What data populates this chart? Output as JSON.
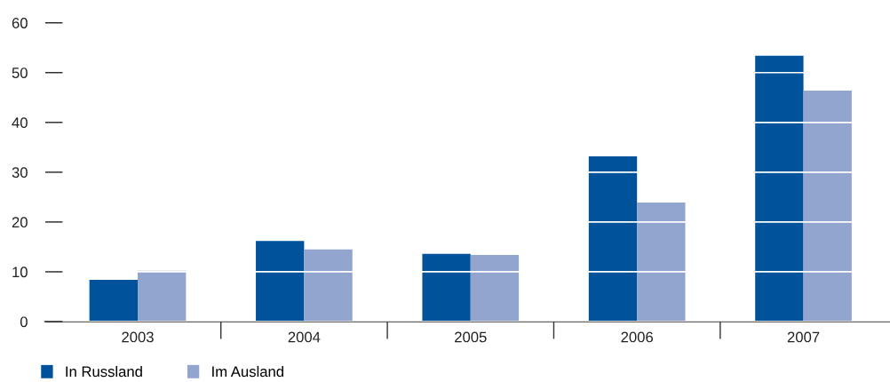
{
  "chart_data": {
    "type": "bar",
    "categories": [
      "2003",
      "2004",
      "2005",
      "2006",
      "2007"
    ],
    "series": [
      {
        "name": "In Russland",
        "color": "#00529b",
        "values": [
          8.4,
          16.2,
          13.6,
          33.2,
          53.4
        ]
      },
      {
        "name": "Im Ausland",
        "color": "#91a5ce",
        "values": [
          10.2,
          14.5,
          13.4,
          23.9,
          46.4
        ]
      }
    ],
    "ylim": [
      0,
      60
    ],
    "yticks": [
      0,
      10,
      20,
      30,
      40,
      50,
      60
    ],
    "grid": "y",
    "legend": "bottom left"
  }
}
